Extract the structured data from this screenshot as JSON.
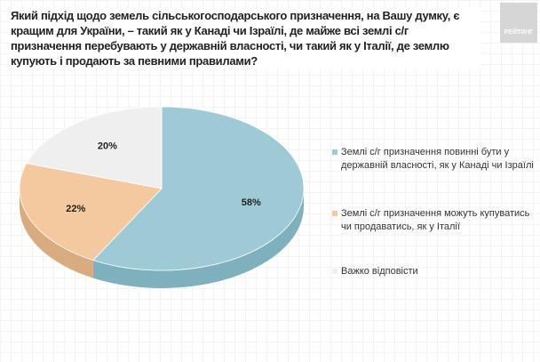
{
  "title": "Який підхід щодо земель сільськогосподарського призначення, на Вашу думку, є кращим для України, – такий як у Канаді чи Ізраїлі, де майже всі землі с/г призначення перебувають у державній власності, чи такий як у Італії, де землю купують і продають за певними правилами?",
  "logo": "РЕЙТИНГ",
  "chart_data": {
    "type": "pie",
    "title": "Який підхід щодо земель сільськогосподарського призначення, на Вашу думку, є кращим для України, – такий як у Канаді чи Ізраїлі, де майже всі землі с/г призначення перебувають у державній власності, чи такий як у Італії, де землю купують і продають за певними правилами?",
    "legend_position": "right",
    "slices": [
      {
        "name": "Землі с/г призначення повинні бути у державній власності, як у Канаді чи Ізраїлі",
        "value": 58,
        "label": "58%",
        "color": "#9ecad6",
        "side": "#7fb0bd"
      },
      {
        "name": "Землі с/г призначення можуть купуватись чи продаватись, як у Італії",
        "value": 22,
        "label": "22%",
        "color": "#f5c9a0",
        "side": "#d9ab80"
      },
      {
        "name": "Важко відповісти",
        "value": 20,
        "label": "20%",
        "color": "#efefef",
        "side": "#d0d0d0"
      }
    ]
  }
}
